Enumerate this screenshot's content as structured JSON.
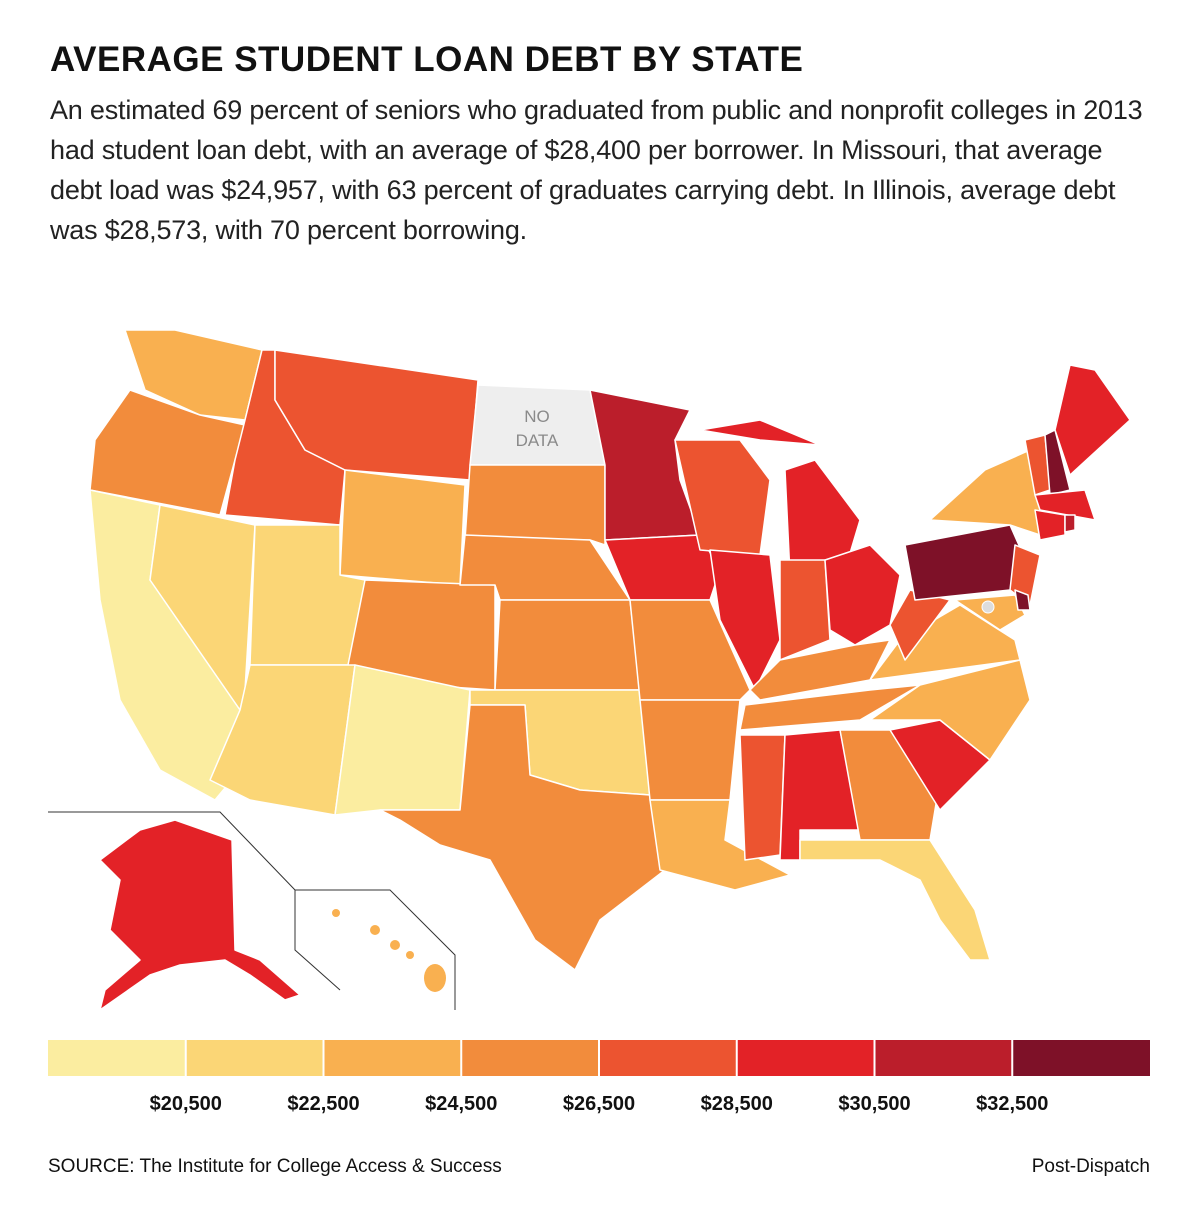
{
  "header": {
    "title": "AVERAGE STUDENT LOAN DEBT BY STATE",
    "description": "An estimated 69 percent of seniors who graduated from public and nonprofit colleges in 2013 had student loan debt, with an average of $28,400 per borrower. In Missouri, that average debt load was $24,957, with 63 percent of graduates carrying debt. In Illinois, average debt was $28,573, with 70 percent borrowing."
  },
  "map": {
    "no_data_label": "NO DATA"
  },
  "legend": {
    "colors": [
      "#fbeda0",
      "#fbd676",
      "#f9b050",
      "#f28c3c",
      "#ec5430",
      "#e32227",
      "#bb1e2b",
      "#7e1128"
    ],
    "lim": [
      18500,
      34500
    ],
    "ticks": [
      {
        "value": 20500,
        "label": "$20,500"
      },
      {
        "value": 22500,
        "label": "$22,500"
      },
      {
        "value": 24500,
        "label": "$24,500"
      },
      {
        "value": 26500,
        "label": "$26,500"
      },
      {
        "value": 28500,
        "label": "$28,500"
      },
      {
        "value": 30500,
        "label": "$30,500"
      },
      {
        "value": 32500,
        "label": "$32,500"
      }
    ]
  },
  "footer": {
    "source": "SOURCE: The Institute for College Access & Success",
    "credit": "Post-Dispatch"
  }
}
